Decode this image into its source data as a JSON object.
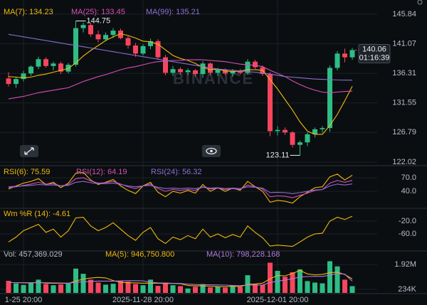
{
  "chart_data": [
    {
      "type": "candlestick",
      "open": [
        135.5,
        134.6,
        135.4,
        136.3,
        137.4,
        138.6,
        137.5,
        137.9,
        136.6,
        137.7,
        143.6,
        144.1,
        142.6,
        141.8,
        142.5,
        143.2,
        142.0,
        140.8,
        139.5,
        140.7,
        141.5,
        138.9,
        136.4,
        137.0,
        136.5,
        136.8,
        136.2,
        137.9,
        136.4,
        136.9,
        136.3,
        136.7,
        136.4,
        138.2,
        137.3,
        136.2,
        127.0,
        127.2,
        126.8,
        124.8,
        125.2,
        126.5,
        127.3,
        127.5,
        137.2,
        139.5,
        138.9
      ],
      "high": [
        136.5,
        135.8,
        136.7,
        137.6,
        139.0,
        138.9,
        138.2,
        138.2,
        138.0,
        144.75,
        144.5,
        144.4,
        143.2,
        142.9,
        143.6,
        143.5,
        142.3,
        141.2,
        141.0,
        141.9,
        141.8,
        139.3,
        137.5,
        137.3,
        137.1,
        137.0,
        138.3,
        138.1,
        137.2,
        137.1,
        137.0,
        137.0,
        138.6,
        138.5,
        137.6,
        136.5,
        127.8,
        127.6,
        127.0,
        125.5,
        126.8,
        127.6,
        127.8,
        137.6,
        139.9,
        140.3,
        140.4
      ],
      "low": [
        134.2,
        134.0,
        135.0,
        135.9,
        137.0,
        137.2,
        136.8,
        136.2,
        136.3,
        137.4,
        142.9,
        142.2,
        141.3,
        141.5,
        142.0,
        141.8,
        140.3,
        139.0,
        139.2,
        140.2,
        138.5,
        136.0,
        135.9,
        136.1,
        136.0,
        135.8,
        135.6,
        136.0,
        135.9,
        136.0,
        135.8,
        136.1,
        136.1,
        137.0,
        135.9,
        126.2,
        126.3,
        126.4,
        124.4,
        123.11,
        124.6,
        126.0,
        126.8,
        126.9,
        136.8,
        138.1,
        138.5
      ],
      "close": [
        134.6,
        135.4,
        136.3,
        137.4,
        138.6,
        137.5,
        137.9,
        136.6,
        137.7,
        143.6,
        144.1,
        142.6,
        141.8,
        142.5,
        143.2,
        142.0,
        140.8,
        139.5,
        140.7,
        141.5,
        138.9,
        136.4,
        137.0,
        136.5,
        136.8,
        136.2,
        137.9,
        136.4,
        136.9,
        136.3,
        136.7,
        136.4,
        138.2,
        137.3,
        136.2,
        127.0,
        127.2,
        126.8,
        124.8,
        125.2,
        126.5,
        127.3,
        127.5,
        137.2,
        139.5,
        138.9,
        140.06
      ],
      "colors": {
        "up": "#2ebd85",
        "down": "#f6465d"
      },
      "series": [
        {
          "name": "MA(7): 134.23",
          "color": "#f0b90b",
          "values": [
            135.8,
            135.7,
            135.6,
            135.7,
            136.0,
            136.2,
            136.5,
            136.8,
            137.1,
            138.0,
            139.1,
            140.0,
            140.8,
            141.6,
            142.2,
            142.7,
            142.4,
            142.0,
            141.5,
            141.4,
            141.0,
            140.1,
            139.2,
            138.7,
            138.4,
            137.9,
            137.3,
            136.9,
            137.0,
            136.7,
            136.6,
            136.7,
            136.9,
            136.9,
            136.8,
            135.3,
            133.8,
            132.1,
            130.4,
            128.5,
            127.0,
            126.5,
            126.5,
            127.9,
            129.7,
            131.9,
            134.23
          ]
        },
        {
          "name": "MA(25): 133.45",
          "color": "#d64fb4",
          "values": [
            132.2,
            132.4,
            132.6,
            132.9,
            133.2,
            133.4,
            133.6,
            133.8,
            134.0,
            134.5,
            135.0,
            135.4,
            135.8,
            136.1,
            136.5,
            136.9,
            137.2,
            137.4,
            137.7,
            138.0,
            138.2,
            138.3,
            138.4,
            138.4,
            138.5,
            138.5,
            138.5,
            138.4,
            138.3,
            138.2,
            138.0,
            137.8,
            137.7,
            137.6,
            137.4,
            136.8,
            136.3,
            135.8,
            135.1,
            134.5,
            134.0,
            133.6,
            133.3,
            133.2,
            133.3,
            133.4,
            133.45
          ]
        },
        {
          "name": "MA(99): 135.21",
          "color": "#8b6fd6",
          "values": [
            142.6,
            142.4,
            142.2,
            142.0,
            141.8,
            141.6,
            141.4,
            141.2,
            141.0,
            140.8,
            140.6,
            140.4,
            140.2,
            140.0,
            139.8,
            139.6,
            139.4,
            139.2,
            139.0,
            138.8,
            138.6,
            138.4,
            138.2,
            138.0,
            137.8,
            137.6,
            137.4,
            137.2,
            137.0,
            136.9,
            136.8,
            136.7,
            136.6,
            136.5,
            136.4,
            136.2,
            136.0,
            135.8,
            135.7,
            135.6,
            135.5,
            135.4,
            135.35,
            135.3,
            135.25,
            135.22,
            135.21
          ]
        }
      ],
      "ylim": [
        121.56,
        148.13
      ],
      "yticks": [
        145.84,
        141.07,
        136.31,
        131.55,
        126.79,
        122.02
      ],
      "last_price": 140.06,
      "countdown": "01:16:39",
      "watermark": "BINANCE"
    },
    {
      "type": "line",
      "series": [
        {
          "name": "RSI(6): 75.59",
          "color": "#f0b90b",
          "values": [
            45,
            52,
            58,
            62,
            68,
            55,
            60,
            48,
            58,
            80,
            82,
            65,
            55,
            60,
            66,
            52,
            42,
            35,
            52,
            60,
            38,
            28,
            40,
            36,
            42,
            36,
            55,
            40,
            48,
            40,
            47,
            42,
            62,
            50,
            40,
            16,
            20,
            18,
            14,
            28,
            38,
            48,
            50,
            72,
            78,
            65,
            75.59
          ]
        },
        {
          "name": "RSI(12): 64.19",
          "color": "#d64fb4",
          "values": [
            48,
            50,
            53,
            56,
            60,
            56,
            57,
            52,
            55,
            68,
            70,
            63,
            58,
            59,
            62,
            56,
            50,
            46,
            52,
            56,
            46,
            40,
            44,
            42,
            44,
            42,
            50,
            45,
            47,
            44,
            46,
            44,
            54,
            50,
            45,
            28,
            30,
            29,
            26,
            31,
            36,
            42,
            44,
            58,
            64,
            60,
            64.19
          ]
        },
        {
          "name": "RSI(24): 56.32",
          "color": "#8b6fd6",
          "values": [
            50,
            51,
            52,
            53,
            55,
            54,
            54,
            52,
            53,
            60,
            62,
            59,
            57,
            57,
            58,
            55,
            52,
            50,
            52,
            53,
            49,
            46,
            47,
            46,
            47,
            46,
            49,
            47,
            48,
            46,
            47,
            46,
            50,
            49,
            47,
            37,
            38,
            37,
            35,
            37,
            40,
            43,
            44,
            52,
            56,
            54,
            56.32
          ]
        }
      ],
      "ylim": [
        4,
        92
      ],
      "yticks": [
        {
          "value": 70,
          "label": "70.0"
        },
        {
          "value": 40,
          "label": "40.0"
        }
      ]
    },
    {
      "type": "line",
      "series": [
        {
          "name": "Wm %R (14): -4.61",
          "color": "#f0b90b",
          "values": [
            -85,
            -70,
            -50,
            -40,
            -30,
            -55,
            -45,
            -70,
            -50,
            -10,
            -8,
            -35,
            -50,
            -40,
            -25,
            -45,
            -65,
            -80,
            -55,
            -40,
            -75,
            -90,
            -70,
            -78,
            -65,
            -75,
            -45,
            -70,
            -60,
            -72,
            -62,
            -70,
            -35,
            -55,
            -72,
            -98,
            -95,
            -97,
            -99,
            -85,
            -70,
            -60,
            -58,
            -20,
            -8,
            -15,
            -4.61
          ]
        }
      ],
      "ylim": [
        -111,
        13.3
      ],
      "yticks": [
        {
          "value": -20,
          "label": "-20.0"
        },
        {
          "value": -60,
          "label": "-60.0"
        }
      ]
    },
    {
      "type": "bar",
      "name": "Vol: 457,369.029",
      "values": [
        820000,
        650000,
        540000,
        700000,
        900000,
        600000,
        520000,
        580000,
        640000,
        1650000,
        1300000,
        900000,
        700000,
        560000,
        620000,
        820000,
        760000,
        600000,
        520000,
        900000,
        480000,
        700000,
        520000,
        460000,
        300000,
        420000,
        600000,
        380000,
        420000,
        360000,
        500000,
        400000,
        1200000,
        600000,
        560000,
        2050000,
        1500000,
        1100000,
        1400000,
        1600000,
        800000,
        700000,
        650000,
        2150000,
        1800000,
        900000,
        457369.029
      ],
      "series": [
        {
          "name": "MA(5): 946,750.800",
          "color": "#f0b90b",
          "values": [
            700000,
            700000,
            690000,
            680000,
            720000,
            660000,
            650000,
            660000,
            650000,
            800000,
            940000,
            1010000,
            1050000,
            1020000,
            840000,
            720000,
            690000,
            680000,
            660000,
            660000,
            650000,
            640000,
            640000,
            620000,
            500000,
            480000,
            480000,
            460000,
            430000,
            420000,
            460000,
            420000,
            580000,
            610000,
            660000,
            960000,
            1180000,
            1160000,
            1320000,
            1530000,
            1290000,
            1230000,
            1260000,
            1370000,
            1410000,
            1250000,
            946750.8
          ]
        },
        {
          "name": "MA(10): 798,228.168",
          "color": "#b07ae0",
          "values": [
            700000,
            700000,
            690000,
            690000,
            700000,
            690000,
            680000,
            670000,
            660000,
            720000,
            750000,
            780000,
            800000,
            800000,
            800000,
            820000,
            830000,
            830000,
            820000,
            720000,
            680000,
            670000,
            650000,
            640000,
            600000,
            570000,
            560000,
            550000,
            540000,
            530000,
            500000,
            490000,
            540000,
            530000,
            530000,
            710000,
            800000,
            870000,
            960000,
            1080000,
            1110000,
            1130000,
            1120000,
            1200000,
            1320000,
            1270000,
            798228.168
          ]
        }
      ],
      "ylim": [
        0,
        2750000
      ],
      "yticks": [
        {
          "value": 1920000,
          "label": "1.92M"
        },
        {
          "value": 234000,
          "label": "234K"
        }
      ],
      "categories": [
        null,
        null,
        "1-25 20:00",
        null,
        null,
        null,
        null,
        null,
        null,
        null,
        null,
        null,
        null,
        null,
        null,
        null,
        null,
        null,
        "2025-11-28 20:00",
        null,
        null,
        null,
        null,
        null,
        null,
        null,
        null,
        null,
        null,
        null,
        null,
        null,
        null,
        null,
        null,
        null,
        "2025-12-01 20:00",
        null,
        null,
        null,
        null,
        null,
        null,
        null,
        null,
        null,
        null
      ]
    }
  ]
}
